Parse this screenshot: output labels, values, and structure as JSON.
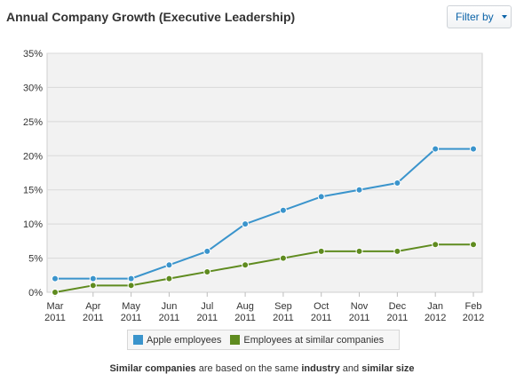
{
  "header": {
    "title": "Annual Company Growth (Executive Leadership)",
    "filter_label": "Filter by"
  },
  "footnote": {
    "p1": "Similar companies",
    "p2": " are based on the same ",
    "p3": "industry",
    "p4": " and ",
    "p5": "similar size"
  },
  "colors": {
    "apple": "#3a94cc",
    "similar": "#5f8b1f"
  },
  "chart_data": {
    "type": "line",
    "title": "",
    "xlabel": "",
    "ylabel": "",
    "x_ticks": [
      [
        "Mar",
        "2011"
      ],
      [
        "Apr",
        "2011"
      ],
      [
        "May",
        "2011"
      ],
      [
        "Jun",
        "2011"
      ],
      [
        "Jul",
        "2011"
      ],
      [
        "Aug",
        "2011"
      ],
      [
        "Sep",
        "2011"
      ],
      [
        "Oct",
        "2011"
      ],
      [
        "Nov",
        "2011"
      ],
      [
        "Dec",
        "2011"
      ],
      [
        "Jan",
        "2012"
      ],
      [
        "Feb",
        "2012"
      ]
    ],
    "y_ticks": [
      "0%",
      "5%",
      "10%",
      "15%",
      "20%",
      "25%",
      "30%",
      "35%"
    ],
    "ylim": [
      0,
      35
    ],
    "grid": true,
    "legend_position": "bottom",
    "series": [
      {
        "name": "Apple employees",
        "values": [
          2,
          2,
          2,
          4,
          6,
          10,
          12,
          14,
          15,
          16,
          21,
          21
        ]
      },
      {
        "name": "Employees at similar companies",
        "values": [
          0,
          1,
          1,
          2,
          3,
          4,
          5,
          6,
          6,
          6,
          7,
          7
        ]
      }
    ]
  }
}
